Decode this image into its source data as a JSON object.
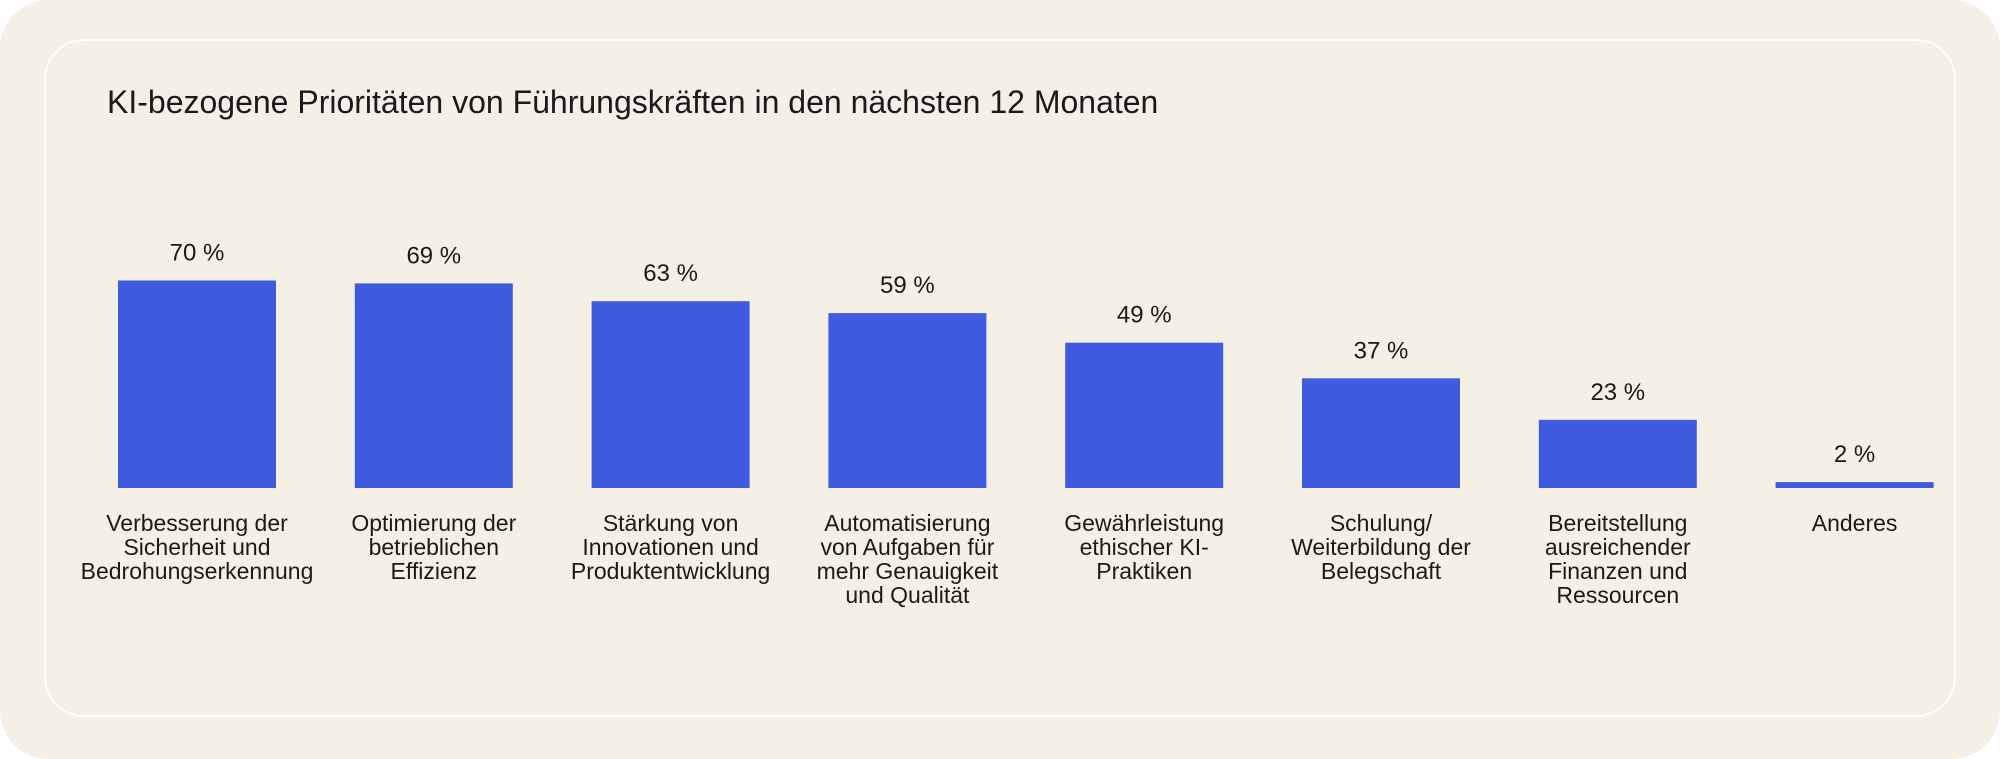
{
  "colors": {
    "background": "#f5f0e6",
    "panel_border": "#ffffff",
    "bar": "#405bdf",
    "text": "#1a1a1a"
  },
  "chart_data": {
    "type": "bar",
    "title": "KI-bezogene Prioritäten von Führungskräften in den nächsten 12 Monaten",
    "xlabel": "",
    "ylabel": "",
    "ylim": [
      0,
      100
    ],
    "grid": false,
    "legend": "none",
    "categories": [
      "Verbesserung der Sicherheit und Bedrohungserkennung",
      "Optimierung der betrieblichen Effizienz",
      "Stärkung von Innovationen und Produktentwicklung",
      "Automatisierung von Aufgaben für mehr Genauigkeit und Qualität",
      "Gewährleistung ethischer KI-Praktiken",
      "Schulung/ Weiterbildung der Belegschaft",
      "Bereitstellung ausreichender Finanzen und Ressourcen",
      "Anderes"
    ],
    "category_lines": [
      [
        "Verbesserung der",
        "Sicherheit und",
        "Bedrohungserkennung"
      ],
      [
        "Optimierung der",
        "betrieblichen",
        "Effizienz"
      ],
      [
        "Stärkung von",
        "Innovationen und",
        "Produktentwicklung"
      ],
      [
        "Automatisierung",
        "von Aufgaben für",
        "mehr Genauigkeit",
        "und Qualität"
      ],
      [
        "Gewährleistung",
        "ethischer KI-",
        "Praktiken"
      ],
      [
        "Schulung/",
        "Weiterbildung der",
        "Belegschaft"
      ],
      [
        "Bereitstellung",
        "ausreichender",
        "Finanzen und",
        "Ressourcen"
      ],
      [
        "Anderes"
      ]
    ],
    "values": [
      70,
      69,
      63,
      59,
      49,
      37,
      23,
      2
    ],
    "value_labels": [
      "70 %",
      "69 %",
      "63 %",
      "59 %",
      "49 %",
      "37 %",
      "23 %",
      "2 %"
    ]
  }
}
